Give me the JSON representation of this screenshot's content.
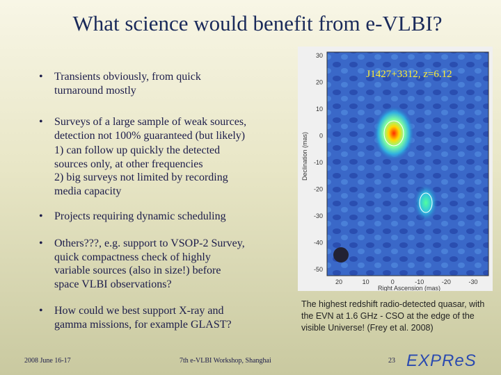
{
  "title": "What science would benefit from e-VLBI?",
  "bullets": [
    {
      "lines": [
        "Transients obviously, from quick",
        "turnaround mostly"
      ]
    },
    {
      "lines": [
        "Surveys of a large sample of weak sources,",
        "detection not 100% guaranteed (but likely)",
        "1) can follow up quickly the detected",
        "sources only, at other frequencies",
        "2) big surveys not limited by recording",
        "media capacity"
      ]
    },
    {
      "lines": [
        "Projects requiring dynamic scheduling"
      ]
    },
    {
      "lines": [
        "Others???, e.g. support to VSOP-2 Survey,",
        "quick compactness check of highly",
        "variable sources (also in size!) before",
        "space VLBI observations?"
      ]
    },
    {
      "lines": [
        "How could we best support X-ray and",
        "gamma missions, for example GLAST?"
      ]
    }
  ],
  "image": {
    "label": "J1427+3312, z=6.12",
    "y_axis_label": "Declination (mas)",
    "x_axis_label": "Right Ascension (mas)",
    "y_ticks": [
      "30",
      "20",
      "10",
      "0",
      "-10",
      "-20",
      "-30",
      "-40",
      "-50"
    ],
    "x_ticks": [
      "20",
      "10",
      "0",
      "-10",
      "-20",
      "-30"
    ]
  },
  "caption": [
    "The highest redshift radio-detected quasar, with",
    "the EVN at 1.6 GHz - CSO at the edge of the",
    "visible Universe! (Frey et al. 2008)"
  ],
  "footer": {
    "date": "2008 June 16-17",
    "event": "7th e-VLBI Workshop, Shanghai",
    "page": "23",
    "logo": "EXPReS"
  }
}
